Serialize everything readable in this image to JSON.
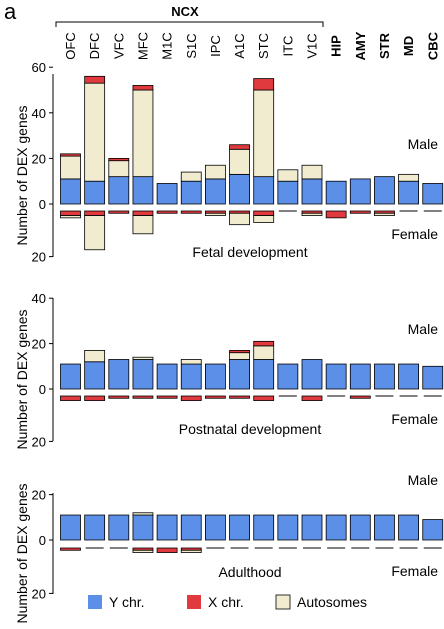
{
  "figure": {
    "panel_letter": "a",
    "group_label": "NCX",
    "regions": [
      "OFC",
      "DFC",
      "VFC",
      "MFC",
      "M1C",
      "S1C",
      "IPC",
      "A1C",
      "STC",
      "ITC",
      "V1C",
      "HIP",
      "AMY",
      "STR",
      "MD",
      "CBC"
    ],
    "ncx_regions": [
      "OFC",
      "DFC",
      "VFC",
      "MFC",
      "M1C",
      "S1C",
      "IPC",
      "A1C",
      "STC",
      "ITC",
      "V1C"
    ],
    "bold_regions": [
      "HIP",
      "AMY",
      "STR",
      "MD",
      "CBC"
    ],
    "y_axis_label": "Number of DEX genes",
    "male_label": "Male",
    "female_label": "Female"
  },
  "legend": {
    "items": [
      {
        "label": "Y chr.",
        "color": "#5b8fe8"
      },
      {
        "label": "X chr.",
        "color": "#e03a3e"
      },
      {
        "label": "Autosomes",
        "color": "#f1ebcf"
      }
    ]
  },
  "chart_data": [
    {
      "type": "bar",
      "stacked": true,
      "diverging": true,
      "title": "Fetal development",
      "categories": [
        "OFC",
        "DFC",
        "VFC",
        "MFC",
        "M1C",
        "S1C",
        "IPC",
        "A1C",
        "STC",
        "ITC",
        "V1C",
        "HIP",
        "AMY",
        "STR",
        "MD",
        "CBC"
      ],
      "male_ticks": [
        0,
        20,
        40,
        60
      ],
      "female_ticks": [
        20
      ],
      "ylim_male": [
        0,
        60
      ],
      "ylim_female": [
        0,
        20
      ],
      "male": {
        "y_chr": [
          11,
          10,
          12,
          12,
          9,
          10,
          11,
          13,
          12,
          10,
          11,
          10,
          11,
          12,
          10,
          9
        ],
        "x_chr": [
          1,
          3,
          1,
          2,
          0,
          0,
          0,
          2,
          5,
          0,
          0,
          0,
          0,
          0,
          0,
          0
        ],
        "autosomes": [
          10,
          43,
          7,
          38,
          0,
          4,
          6,
          11,
          38,
          5,
          6,
          0,
          0,
          0,
          3,
          0
        ]
      },
      "female": {
        "x_chr": [
          2,
          2,
          1,
          2,
          1,
          1,
          1,
          1,
          2,
          0,
          1,
          3,
          1,
          1,
          0,
          0
        ],
        "autosomes": [
          1,
          15,
          0,
          8,
          0,
          0,
          1,
          5,
          3,
          0,
          1,
          0,
          0,
          1,
          0,
          0
        ]
      }
    },
    {
      "type": "bar",
      "stacked": true,
      "diverging": true,
      "title": "Postnatal development",
      "categories": [
        "OFC",
        "DFC",
        "VFC",
        "MFC",
        "M1C",
        "S1C",
        "IPC",
        "A1C",
        "STC",
        "ITC",
        "V1C",
        "HIP",
        "AMY",
        "STR",
        "MD",
        "CBC"
      ],
      "male_ticks": [
        0,
        20,
        40
      ],
      "female_ticks": [
        20
      ],
      "ylim_male": [
        0,
        40
      ],
      "ylim_female": [
        0,
        20
      ],
      "male": {
        "y_chr": [
          11,
          12,
          13,
          13,
          11,
          11,
          11,
          13,
          13,
          11,
          13,
          11,
          11,
          11,
          11,
          10
        ],
        "x_chr": [
          0,
          0,
          0,
          0,
          0,
          0,
          0,
          1,
          2,
          0,
          0,
          0,
          0,
          0,
          0,
          0
        ],
        "autosomes": [
          0,
          5,
          0,
          1,
          0,
          2,
          0,
          3,
          6,
          0,
          0,
          0,
          0,
          0,
          0,
          0
        ]
      },
      "female": {
        "x_chr": [
          2,
          2,
          1,
          1,
          1,
          2,
          1,
          1,
          2,
          0,
          2,
          0,
          1,
          0,
          0,
          0
        ],
        "autosomes": [
          0,
          0,
          0,
          0,
          0,
          0,
          0,
          0,
          0,
          0,
          0,
          0,
          0,
          0,
          0,
          0
        ]
      }
    },
    {
      "type": "bar",
      "stacked": true,
      "diverging": true,
      "title": "Adulthood",
      "categories": [
        "OFC",
        "DFC",
        "VFC",
        "MFC",
        "M1C",
        "S1C",
        "IPC",
        "A1C",
        "STC",
        "ITC",
        "V1C",
        "HIP",
        "AMY",
        "STR",
        "MD",
        "CBC"
      ],
      "male_ticks": [
        0,
        20
      ],
      "female_ticks": [
        20
      ],
      "ylim_male": [
        0,
        20
      ],
      "ylim_female": [
        0,
        20
      ],
      "male": {
        "y_chr": [
          11,
          11,
          11,
          11,
          11,
          11,
          11,
          11,
          11,
          11,
          11,
          11,
          11,
          11,
          11,
          9
        ],
        "x_chr": [
          0,
          0,
          0,
          0,
          0,
          0,
          0,
          0,
          0,
          0,
          0,
          0,
          0,
          0,
          0,
          0
        ],
        "autosomes": [
          0,
          0,
          0,
          1,
          0,
          0,
          0,
          0,
          0,
          0,
          0,
          0,
          0,
          0,
          0,
          0
        ]
      },
      "female": {
        "x_chr": [
          1,
          0,
          0,
          1,
          2,
          1,
          0,
          0,
          0,
          0,
          0,
          0,
          0,
          0,
          0,
          0
        ],
        "autosomes": [
          0,
          0,
          0,
          1,
          0,
          1,
          0,
          0,
          0,
          0,
          0,
          0,
          0,
          0,
          0,
          0
        ]
      }
    }
  ]
}
